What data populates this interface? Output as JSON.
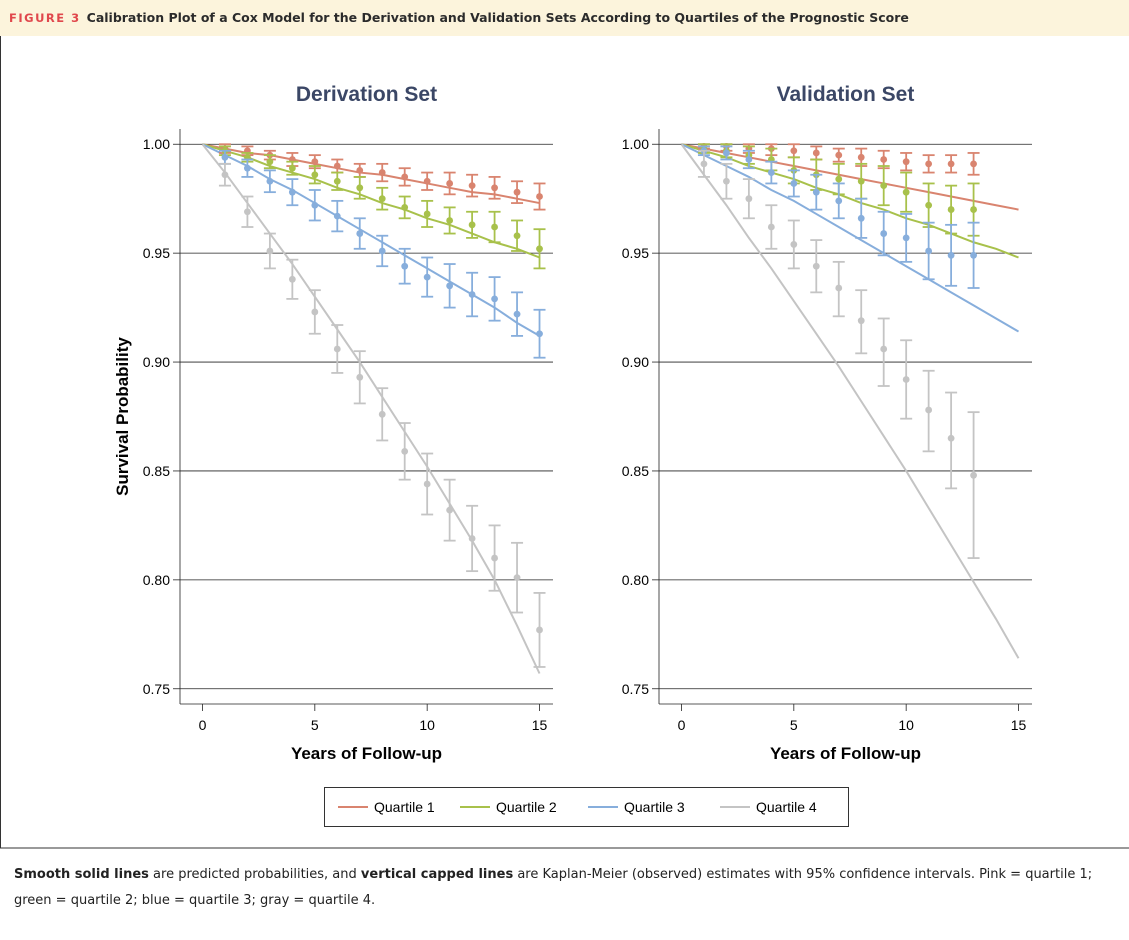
{
  "figure_label": "FIGURE 3",
  "figure_title": "Calibration Plot of a Cox Model for the Derivation and Validation Sets According to Quartiles of the Prognostic Score",
  "legend": [
    {
      "name": "Quartile 1",
      "color": "#d9846f"
    },
    {
      "name": "Quartile 2",
      "color": "#a8c14b"
    },
    {
      "name": "Quartile 3",
      "color": "#87aedc"
    },
    {
      "name": "Quartile 4",
      "color": "#c4c4c4"
    }
  ],
  "chart_data": [
    {
      "type": "line",
      "title": "Derivation Set",
      "xlabel": "Years of Follow-up",
      "ylabel": "Survival Probability",
      "xlim": [
        -1,
        15.6
      ],
      "xticks": [
        0,
        5,
        10,
        15
      ],
      "ylim": [
        0.743,
        1.007
      ],
      "yticks": [
        {
          "value": 1,
          "label": "1.00"
        },
        0.95,
        {
          "value": 0.9,
          "label": "0.90"
        },
        0.85,
        {
          "value": 0.8,
          "label": "0.80"
        },
        0.75
      ],
      "grid": true,
      "x": [
        0,
        1,
        2,
        3,
        4,
        5,
        6,
        7,
        8,
        9,
        10,
        11,
        12,
        13,
        14,
        15
      ],
      "observed_x": [
        1,
        2,
        3,
        4,
        5,
        6,
        7,
        8,
        9,
        10,
        11,
        12,
        13,
        14,
        15
      ],
      "series": [
        {
          "values": [
            1,
            0.998,
            0.996,
            0.995,
            0.993,
            0.991,
            0.989,
            0.987,
            0.986,
            0.984,
            0.982,
            0.98,
            0.978,
            0.977,
            0.975,
            0.973
          ],
          "observed": [
            0.998,
            0.997,
            0.995,
            0.993,
            0.992,
            0.99,
            0.988,
            0.987,
            0.985,
            0.983,
            0.982,
            0.981,
            0.98,
            0.978,
            0.976
          ],
          "lower": [
            0.996,
            0.995,
            0.993,
            0.99,
            0.989,
            0.987,
            0.985,
            0.983,
            0.981,
            0.979,
            0.977,
            0.976,
            0.975,
            0.973,
            0.97
          ],
          "upper": [
            1,
            0.999,
            0.997,
            0.996,
            0.995,
            0.993,
            0.991,
            0.991,
            0.989,
            0.987,
            0.987,
            0.986,
            0.985,
            0.983,
            0.982
          ]
        },
        {
          "values": [
            1,
            0.997,
            0.994,
            0.99,
            0.987,
            0.984,
            0.98,
            0.977,
            0.973,
            0.97,
            0.966,
            0.963,
            0.959,
            0.955,
            0.952,
            0.948
          ],
          "observed": [
            0.997,
            0.994,
            0.992,
            0.989,
            0.986,
            0.983,
            0.98,
            0.975,
            0.971,
            0.968,
            0.965,
            0.963,
            0.962,
            0.958,
            0.952
          ],
          "lower": [
            0.995,
            0.992,
            0.989,
            0.986,
            0.982,
            0.979,
            0.975,
            0.97,
            0.966,
            0.962,
            0.959,
            0.957,
            0.955,
            0.951,
            0.943
          ],
          "upper": [
            0.999,
            0.996,
            0.995,
            0.992,
            0.99,
            0.987,
            0.985,
            0.98,
            0.976,
            0.974,
            0.971,
            0.969,
            0.969,
            0.965,
            0.961
          ]
        },
        {
          "values": [
            1,
            0.995,
            0.99,
            0.984,
            0.979,
            0.973,
            0.967,
            0.961,
            0.955,
            0.949,
            0.943,
            0.937,
            0.931,
            0.925,
            0.918,
            0.912
          ],
          "observed": [
            0.994,
            0.989,
            0.983,
            0.978,
            0.972,
            0.967,
            0.959,
            0.951,
            0.944,
            0.939,
            0.935,
            0.931,
            0.929,
            0.922,
            0.913
          ],
          "lower": [
            0.991,
            0.985,
            0.978,
            0.972,
            0.965,
            0.96,
            0.952,
            0.944,
            0.936,
            0.93,
            0.925,
            0.921,
            0.919,
            0.912,
            0.902
          ],
          "upper": [
            0.997,
            0.993,
            0.988,
            0.984,
            0.979,
            0.974,
            0.966,
            0.958,
            0.952,
            0.948,
            0.945,
            0.941,
            0.939,
            0.932,
            0.924
          ]
        },
        {
          "values": [
            1,
            0.987,
            0.973,
            0.959,
            0.945,
            0.93,
            0.915,
            0.9,
            0.884,
            0.868,
            0.852,
            0.835,
            0.818,
            0.8,
            0.779,
            0.757
          ],
          "observed": [
            0.986,
            0.969,
            0.951,
            0.938,
            0.923,
            0.906,
            0.893,
            0.876,
            0.859,
            0.844,
            0.832,
            0.819,
            0.81,
            0.801,
            0.777
          ],
          "lower": [
            0.981,
            0.962,
            0.943,
            0.929,
            0.913,
            0.895,
            0.881,
            0.864,
            0.846,
            0.83,
            0.818,
            0.804,
            0.795,
            0.785,
            0.76
          ],
          "upper": [
            0.991,
            0.976,
            0.959,
            0.947,
            0.933,
            0.917,
            0.905,
            0.888,
            0.872,
            0.858,
            0.846,
            0.834,
            0.825,
            0.817,
            0.794
          ]
        }
      ]
    },
    {
      "type": "line",
      "title": "Validation Set",
      "xlabel": "Years of Follow-up",
      "xlim": [
        -1,
        15.6
      ],
      "xticks": [
        0,
        5,
        10,
        15
      ],
      "ylim": [
        0.743,
        1.007
      ],
      "yticks": [
        {
          "value": 1,
          "label": "1.00"
        },
        0.95,
        {
          "value": 0.9,
          "label": "0.90"
        },
        0.85,
        {
          "value": 0.8,
          "label": "0.80"
        },
        0.75
      ],
      "grid": true,
      "x": [
        0,
        1,
        2,
        3,
        4,
        5,
        6,
        7,
        8,
        9,
        10,
        11,
        12,
        13,
        14,
        15
      ],
      "observed_x": [
        1,
        2,
        3,
        4,
        5,
        6,
        7,
        8,
        9,
        10,
        11,
        12,
        13
      ],
      "series": [
        {
          "values": [
            1,
            0.998,
            0.996,
            0.994,
            0.992,
            0.99,
            0.988,
            0.986,
            0.984,
            0.982,
            0.98,
            0.978,
            0.976,
            0.974,
            0.972,
            0.97
          ],
          "observed": [
            0.999,
            0.999,
            0.998,
            0.998,
            0.997,
            0.996,
            0.995,
            0.994,
            0.993,
            0.992,
            0.991,
            0.991,
            0.991
          ],
          "lower": [
            0.998,
            0.997,
            0.996,
            0.995,
            0.994,
            0.993,
            0.992,
            0.99,
            0.989,
            0.988,
            0.987,
            0.987,
            0.986
          ],
          "upper": [
            1,
            1,
            1,
            1,
            1,
            0.999,
            0.998,
            0.998,
            0.997,
            0.996,
            0.995,
            0.995,
            0.996
          ]
        },
        {
          "values": [
            1,
            0.997,
            0.994,
            0.99,
            0.987,
            0.984,
            0.98,
            0.977,
            0.973,
            0.97,
            0.966,
            0.963,
            0.959,
            0.955,
            0.952,
            0.948
          ],
          "observed": [
            0.998,
            0.997,
            0.995,
            0.993,
            0.988,
            0.986,
            0.984,
            0.983,
            0.981,
            0.978,
            0.972,
            0.97,
            0.97
          ],
          "lower": [
            0.996,
            0.994,
            0.991,
            0.988,
            0.982,
            0.979,
            0.977,
            0.975,
            0.972,
            0.969,
            0.962,
            0.959,
            0.958
          ],
          "upper": [
            1,
            1,
            0.999,
            0.998,
            0.994,
            0.993,
            0.991,
            0.991,
            0.99,
            0.987,
            0.982,
            0.981,
            0.982
          ]
        },
        {
          "values": [
            1,
            0.995,
            0.99,
            0.985,
            0.979,
            0.974,
            0.968,
            0.962,
            0.956,
            0.95,
            0.944,
            0.938,
            0.932,
            0.926,
            0.92,
            0.914
          ],
          "observed": [
            0.997,
            0.996,
            0.993,
            0.987,
            0.982,
            0.978,
            0.974,
            0.966,
            0.959,
            0.957,
            0.951,
            0.949,
            0.949
          ],
          "lower": [
            0.995,
            0.993,
            0.989,
            0.982,
            0.976,
            0.97,
            0.966,
            0.957,
            0.949,
            0.946,
            0.938,
            0.935,
            0.934
          ],
          "upper": [
            0.999,
            0.999,
            0.997,
            0.992,
            0.988,
            0.986,
            0.982,
            0.975,
            0.969,
            0.968,
            0.964,
            0.963,
            0.964
          ]
        },
        {
          "values": [
            1,
            0.986,
            0.972,
            0.957,
            0.943,
            0.928,
            0.913,
            0.898,
            0.882,
            0.866,
            0.85,
            0.833,
            0.816,
            0.799,
            0.782,
            0.764
          ],
          "observed": [
            0.991,
            0.983,
            0.975,
            0.962,
            0.954,
            0.944,
            0.934,
            0.919,
            0.906,
            0.892,
            0.878,
            0.865,
            0.848
          ],
          "lower": [
            0.985,
            0.975,
            0.966,
            0.952,
            0.943,
            0.932,
            0.921,
            0.904,
            0.889,
            0.874,
            0.859,
            0.842,
            0.81
          ],
          "upper": [
            0.997,
            0.991,
            0.984,
            0.972,
            0.965,
            0.956,
            0.946,
            0.933,
            0.92,
            0.91,
            0.896,
            0.886,
            0.877
          ]
        }
      ]
    }
  ],
  "caption": [
    "Smooth solid lines",
    " are predicted probabilities, and ",
    "vertical capped lines",
    " are Kaplan-Meier (observed) estimates with 95% confidence intervals. Pink = quartile 1; green = quartile 2; blue = quartile 3; gray = quartile 4."
  ]
}
